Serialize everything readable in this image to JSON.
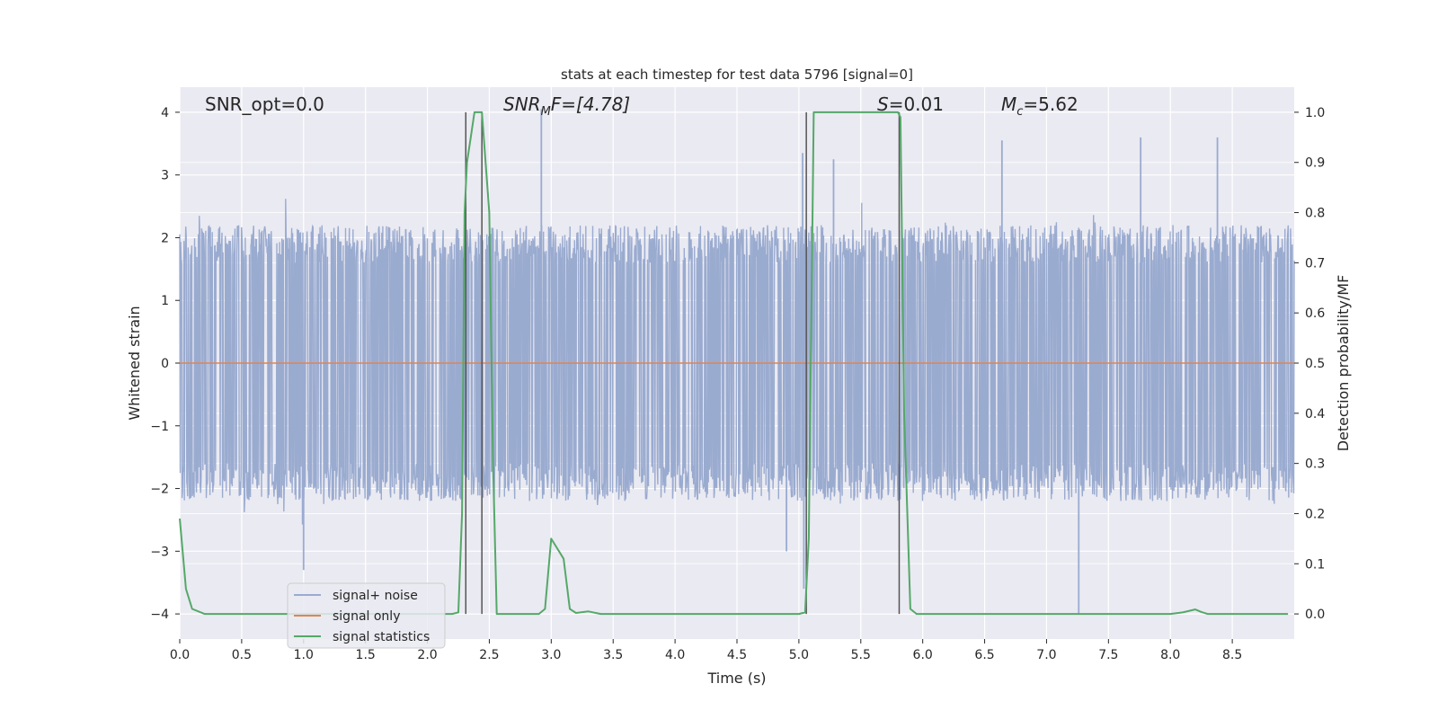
{
  "chart_data": {
    "type": "line",
    "title": "stats at each timestep for test data 5796 [signal=0]",
    "xlabel": "Time (s)",
    "ylabel": "Whitened strain",
    "y2label": "Detection probability/MF",
    "xlim": [
      0,
      9
    ],
    "ylim": [
      -4.4,
      4.4
    ],
    "y2lim": [
      -0.05,
      1.05
    ],
    "xticks": [
      "0.0",
      "0.5",
      "1.0",
      "1.5",
      "2.0",
      "2.5",
      "3.0",
      "3.5",
      "4.0",
      "4.5",
      "5.0",
      "5.5",
      "6.0",
      "6.5",
      "7.0",
      "7.5",
      "8.0",
      "8.5"
    ],
    "xtick_values": [
      0,
      0.5,
      1,
      1.5,
      2,
      2.5,
      3,
      3.5,
      4,
      4.5,
      5,
      5.5,
      6,
      6.5,
      7,
      7.5,
      8,
      8.5
    ],
    "yticks": [
      "−4",
      "−3",
      "−2",
      "−1",
      "0",
      "1",
      "2",
      "3",
      "4"
    ],
    "ytick_values": [
      -4,
      -3,
      -2,
      -1,
      0,
      1,
      2,
      3,
      4
    ],
    "y2ticks": [
      "0.0",
      "0.1",
      "0.2",
      "0.3",
      "0.4",
      "0.5",
      "0.6",
      "0.7",
      "0.8",
      "0.9",
      "1.0"
    ],
    "y2tick_values": [
      0,
      0.1,
      0.2,
      0.3,
      0.4,
      0.5,
      0.6,
      0.7,
      0.8,
      0.9,
      1.0
    ],
    "grid": true,
    "legend_position": "lower-left",
    "colors": {
      "background": "#eaeaf2",
      "grid": "#ffffff",
      "noise": "#9aabd0",
      "signal": "#dd8452",
      "stats": "#55a868",
      "vlines": "#555555"
    },
    "annotations": {
      "snr_opt": "SNR_opt=0.0",
      "snr_mf_base": "SNR",
      "snr_mf_sub": "M",
      "snr_mf_rest": "F=[4.78]",
      "s_var": "S",
      "s_rest": "=0.01",
      "mc_var": "M",
      "mc_sub": "c",
      "mc_rest": "=5.62"
    },
    "series": [
      {
        "name": "signal+ noise",
        "type": "noise",
        "envelope": 2.3,
        "max_abs": 4.0,
        "duration": 9.0
      },
      {
        "name": "signal only",
        "x": [
          0,
          9
        ],
        "y": [
          0,
          0
        ]
      },
      {
        "name": "signal statistics",
        "x": [
          0.0,
          0.05,
          0.1,
          0.2,
          2.2,
          2.25,
          2.28,
          2.3,
          2.32,
          2.35,
          2.38,
          2.44,
          2.5,
          2.53,
          2.56,
          2.6,
          2.9,
          2.95,
          3.0,
          3.05,
          3.1,
          3.15,
          3.2,
          3.3,
          3.4,
          5.0,
          5.05,
          5.08,
          5.12,
          5.8,
          5.82,
          5.85,
          5.9,
          5.95,
          8.0,
          8.1,
          8.2,
          8.25,
          8.3,
          8.95
        ],
        "y": [
          0.19,
          0.05,
          0.01,
          0.0,
          0.0,
          0.003,
          0.2,
          0.8,
          0.9,
          0.95,
          1.0,
          1.0,
          0.8,
          0.3,
          0.0,
          0.0,
          0.0,
          0.01,
          0.15,
          0.13,
          0.11,
          0.01,
          0.002,
          0.005,
          0.0,
          0.0,
          0.003,
          0.15,
          1.0,
          1.0,
          0.99,
          0.4,
          0.01,
          0.0,
          0.0,
          0.003,
          0.009,
          0.004,
          0.0,
          0.0
        ]
      }
    ],
    "vlines": [
      2.31,
      2.44,
      5.06,
      5.81
    ],
    "spikes": [
      {
        "x": 2.92,
        "y": 4.05
      },
      {
        "x": 5.04,
        "y": -3.6
      },
      {
        "x": 5.03,
        "y": 3.35
      },
      {
        "x": 7.26,
        "y": -4.0
      },
      {
        "x": 7.76,
        "y": 3.6
      },
      {
        "x": 8.38,
        "y": 3.6
      },
      {
        "x": 1.0,
        "y": -3.3
      },
      {
        "x": 4.9,
        "y": -3.0
      },
      {
        "x": 6.64,
        "y": 3.55
      },
      {
        "x": 5.28,
        "y": 3.25
      }
    ]
  }
}
